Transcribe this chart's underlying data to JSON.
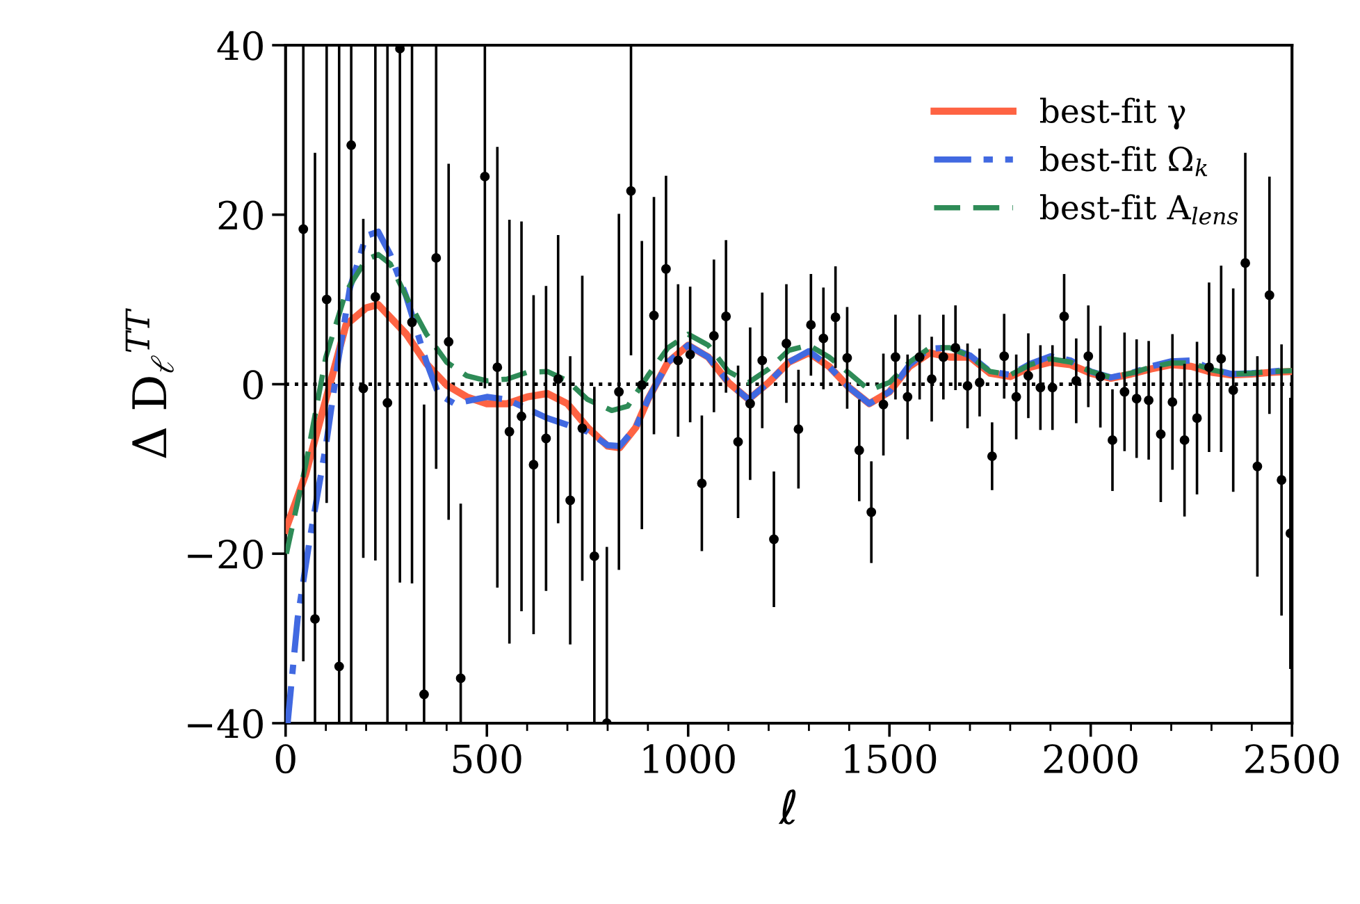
{
  "chart_data": {
    "type": "line",
    "xlabel": "ℓ",
    "ylabel": "Δ D$_{ℓ}$$^{TT}$",
    "xlim": [
      0,
      2500
    ],
    "ylim": [
      -40,
      40
    ],
    "xticks": [
      0,
      {
        "value": 100,
        "label": null
      },
      {
        "value": 200,
        "label": null
      },
      {
        "value": 300,
        "label": null
      },
      {
        "value": 400,
        "label": null
      },
      500,
      {
        "value": 600,
        "label": null
      },
      {
        "value": 700,
        "label": null
      },
      {
        "value": 800,
        "label": null
      },
      {
        "value": 900,
        "label": null
      },
      1000,
      {
        "value": 1100,
        "label": null
      },
      {
        "value": 1200,
        "label": null
      },
      {
        "value": 1300,
        "label": null
      },
      {
        "value": 1400,
        "label": null
      },
      1500,
      {
        "value": 1600,
        "label": null
      },
      {
        "value": 1700,
        "label": null
      },
      {
        "value": 1800,
        "label": null
      },
      {
        "value": 1900,
        "label": null
      },
      2000,
      {
        "value": 2100,
        "label": null
      },
      {
        "value": 2200,
        "label": null
      },
      {
        "value": 2300,
        "label": null
      },
      {
        "value": 2400,
        "label": null
      },
      2500
    ],
    "yticks": [
      {
        "value": -40,
        "label": "−40"
      },
      {
        "value": -20,
        "label": "−20"
      },
      0,
      20,
      40
    ],
    "grid": false,
    "legend": "top right",
    "ref_lines": [
      {
        "axis": "y",
        "value": 0,
        "color": "#000000",
        "line_style": "dotted"
      }
    ],
    "series": [
      {
        "type": "scatter",
        "color": "#000000",
        "marker": "circle",
        "x": [
          44,
          73,
          102,
          133,
          163,
          193,
          223,
          253,
          284,
          314,
          344,
          374,
          405,
          435,
          495,
          526,
          556,
          586,
          616,
          647,
          677,
          707,
          737,
          767,
          798,
          828,
          858,
          885,
          915,
          945,
          975,
          1005,
          1034,
          1064,
          1094,
          1124,
          1154,
          1184,
          1213,
          1244,
          1274,
          1305,
          1336,
          1366,
          1395,
          1425,
          1455,
          1485,
          1515,
          1545,
          1575,
          1605,
          1634,
          1664,
          1694,
          1724,
          1755,
          1785,
          1815,
          1845,
          1875,
          1905,
          1934,
          1964,
          1994,
          2024,
          2054,
          2084,
          2114,
          2144,
          2174,
          2203,
          2233,
          2264,
          2294,
          2324,
          2354,
          2384,
          2414,
          2444,
          2474,
          2496
        ],
        "values": [
          18.3,
          -27.7,
          10,
          -33.3,
          28.2,
          -0.5,
          10.3,
          -2.2,
          39.6,
          7.3,
          -36.6,
          14.9,
          5.0,
          -34.7,
          24.5,
          2.0,
          -5.6,
          -3.8,
          -9.5,
          -6.4,
          0.6,
          -13.7,
          -5.2,
          -20.3,
          -40,
          -0.9,
          22.8,
          -0.1,
          8.1,
          13.6,
          2.8,
          3.5,
          -11.7,
          5.7,
          8.0,
          -6.8,
          -2.3,
          2.8,
          -18.3,
          4.8,
          -5.3,
          7.0,
          5.4,
          7.9,
          3.1,
          -7.8,
          -15.1,
          -2.4,
          3.2,
          -1.5,
          3.2,
          0.6,
          3.2,
          4.3,
          -0.2,
          0.2,
          -8.5,
          3.3,
          -1.5,
          1.0,
          -0.4,
          -0.4,
          8.0,
          0.4,
          3.3,
          0.9,
          -6.6,
          -0.9,
          -1.7,
          -1.9,
          -5.9,
          -2.1,
          -6.6,
          -4.0,
          2.0,
          3.0,
          -0.7,
          14.3,
          -9.7,
          10.5,
          -11.3,
          -17.6
        ],
        "errors": [
          [
            -32.7,
            40
          ],
          [
            -40,
            27.3
          ],
          [
            -14,
            40
          ],
          [
            -40,
            40
          ],
          [
            -40,
            40
          ],
          20,
          [
            -20.8,
            40
          ],
          [
            -40,
            40
          ],
          [
            -23.4,
            40
          ],
          [
            -23.5,
            40
          ],
          [
            -40,
            -2.4
          ],
          [
            -10.0,
            40
          ],
          21,
          [
            -40,
            -14.1
          ],
          [
            -0.5,
            40
          ],
          26,
          25,
          23,
          20,
          18,
          17,
          17,
          18,
          20,
          [
            -40,
            -19.2
          ],
          21,
          [
            3.4,
            40
          ],
          17,
          14,
          11,
          9,
          8,
          8,
          9,
          9,
          9,
          9,
          8,
          8,
          7,
          7,
          6,
          6,
          6,
          6,
          6,
          6,
          6,
          5,
          5,
          5,
          5,
          5,
          5,
          5,
          4,
          4,
          5,
          5,
          5,
          5,
          5,
          5,
          5,
          6,
          6,
          6,
          7,
          7,
          7,
          8,
          8,
          9,
          9,
          10,
          11,
          12,
          13,
          13,
          14,
          16,
          16
        ]
      },
      {
        "type": "line",
        "name": "best-fit γ",
        "color": "#fe6343",
        "line_style": "solid",
        "x": [
          0,
          50,
          100,
          150,
          200,
          230,
          300,
          350,
          400,
          450,
          500,
          550,
          600,
          650,
          700,
          750,
          800,
          830,
          870,
          900,
          950,
          1000,
          1050,
          1100,
          1150,
          1200,
          1250,
          1300,
          1350,
          1400,
          1450,
          1500,
          1550,
          1600,
          1650,
          1700,
          1750,
          1800,
          1850,
          1900,
          1950,
          2000,
          2050,
          2100,
          2150,
          2200,
          2250,
          2300,
          2350,
          2400,
          2450,
          2500
        ],
        "values": [
          -17.2,
          -10.6,
          -1.8,
          7.0,
          9.0,
          9.4,
          5.9,
          2.4,
          -0.1,
          -1.5,
          -2.3,
          -2.3,
          -1.5,
          -1.1,
          -2.3,
          -5.1,
          -7.3,
          -7.5,
          -5.1,
          -1.8,
          2.6,
          4.6,
          3.2,
          0.2,
          -1.8,
          0.2,
          2.6,
          3.7,
          2.1,
          -0.4,
          -2.3,
          -0.9,
          2.1,
          3.7,
          3.2,
          3.2,
          1.3,
          0.9,
          2.0,
          2.6,
          2.3,
          1.3,
          0.7,
          1.2,
          1.8,
          2.3,
          2.1,
          1.4,
          1.1,
          1.2,
          1.4,
          1.5
        ]
      },
      {
        "type": "line",
        "name": "best-fit Ω$_{k}$",
        "color": "#4169e1",
        "line_style": "dashdot",
        "x": [
          5,
          30,
          60,
          100,
          130,
          160,
          200,
          230,
          260,
          300,
          350,
          380,
          420,
          500,
          550,
          600,
          650,
          700,
          750,
          800,
          830,
          870,
          900,
          950,
          1000,
          1050,
          1100,
          1150,
          1200,
          1250,
          1300,
          1350,
          1400,
          1450,
          1500,
          1550,
          1600,
          1650,
          1700,
          1750,
          1800,
          1850,
          1900,
          1950,
          2000,
          2050,
          2100,
          2150,
          2200,
          2250,
          2300,
          2350,
          2400,
          2450,
          2500
        ],
        "values": [
          -40,
          -27.6,
          -18.3,
          -7.3,
          2.6,
          11.4,
          17.5,
          18.0,
          15.3,
          10.3,
          2.6,
          -1.2,
          -2.3,
          -1.5,
          -1.8,
          -2.9,
          -4.0,
          -4.8,
          -5.6,
          -7.2,
          -7.3,
          -5.1,
          -1.8,
          2.6,
          4.6,
          3.2,
          0.2,
          -1.8,
          0.2,
          2.6,
          3.9,
          2.1,
          -0.4,
          -2.3,
          -0.9,
          2.3,
          4.2,
          4.3,
          3.4,
          1.5,
          1.1,
          2.4,
          3.3,
          2.8,
          1.5,
          0.8,
          1.3,
          2.1,
          2.7,
          2.8,
          1.8,
          1.2,
          1.3,
          1.5,
          1.7
        ]
      },
      {
        "type": "line",
        "name": "best-fit A$_{lens}$",
        "color": "#2e8b57",
        "line_style": "dashed",
        "x": [
          2,
          50,
          100,
          150,
          200,
          230,
          260,
          300,
          350,
          400,
          450,
          500,
          550,
          600,
          650,
          700,
          750,
          810,
          850,
          900,
          950,
          1000,
          1050,
          1100,
          1150,
          1200,
          1250,
          1300,
          1350,
          1400,
          1450,
          1500,
          1550,
          1600,
          1650,
          1700,
          1750,
          1800,
          1850,
          1900,
          1950,
          2000,
          2050,
          2100,
          2150,
          2200,
          2250,
          2300,
          2350,
          2400,
          2450,
          2500
        ],
        "values": [
          -20,
          -9.5,
          3.2,
          10.9,
          14.7,
          15.3,
          14.2,
          10.3,
          5.9,
          2.6,
          1.0,
          0.4,
          0.6,
          1.4,
          1.5,
          0.4,
          -1.8,
          -3.1,
          -2.6,
          1.0,
          4.3,
          5.9,
          4.6,
          1.5,
          0.2,
          1.8,
          4.0,
          4.6,
          3.2,
          1.3,
          -0.7,
          0.2,
          2.6,
          4.3,
          4.3,
          3.3,
          1.5,
          1.1,
          2.3,
          3.0,
          2.6,
          1.5,
          0.8,
          1.3,
          2.0,
          2.5,
          2.5,
          1.7,
          1.2,
          1.3,
          1.5,
          1.6
        ]
      }
    ]
  }
}
